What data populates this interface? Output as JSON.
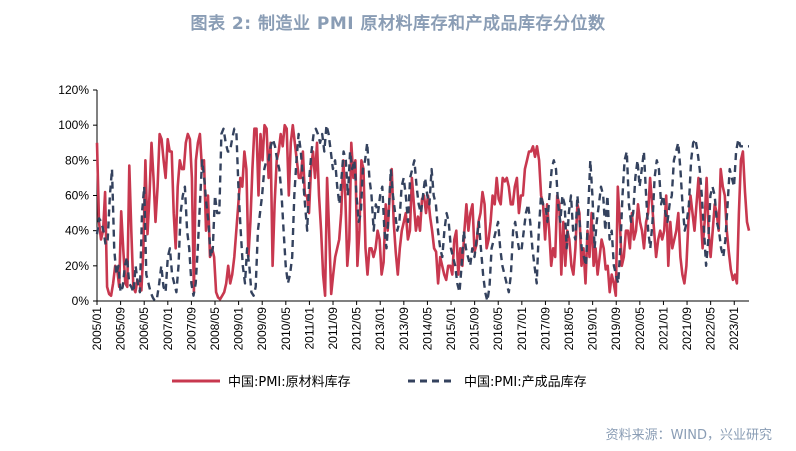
{
  "title": "图表 2:  制造业 PMI 原材料库存和产成品库存分位数",
  "source": "资料来源：WIND，兴业研究",
  "colors": {
    "series1": "#c8384f",
    "series2": "#34425e",
    "title": "#8a9db5"
  },
  "chart_data": {
    "type": "line",
    "title": "图表 2:  制造业 PMI 原材料库存和产成品库存分位数",
    "xlabel": "",
    "ylabel": "",
    "ylim": [
      0,
      120
    ],
    "yticks": [
      "0%",
      "20%",
      "40%",
      "60%",
      "80%",
      "100%",
      "120%"
    ],
    "xticks": [
      "2005/01",
      "2005/09",
      "2006/05",
      "2007/01",
      "2007/09",
      "2008/05",
      "2009/01",
      "2009/09",
      "2010/05",
      "2011/01",
      "2011/09",
      "2012/05",
      "2013/01",
      "2013/09",
      "2014/05",
      "2015/01",
      "2015/09",
      "2016/05",
      "2017/01",
      "2017/09",
      "2018/05",
      "2019/01",
      "2019/09",
      "2020/05",
      "2021/01",
      "2021/09",
      "2022/05",
      "2023/01"
    ],
    "x_start": "2005/01",
    "x_end": "2023/06",
    "legend_position": "bottom",
    "grid": false,
    "series": [
      {
        "name": "中国:PMI:原材料库存",
        "style": "solid",
        "values": [
          90,
          45,
          35,
          40,
          62,
          8,
          4,
          3,
          10,
          20,
          18,
          8,
          51,
          30,
          10,
          8,
          77,
          40,
          8,
          5,
          12,
          10,
          6,
          30,
          80,
          38,
          60,
          90,
          70,
          45,
          65,
          95,
          92,
          80,
          70,
          92,
          85,
          85,
          50,
          30,
          65,
          80,
          75,
          75,
          90,
          95,
          92,
          70,
          5,
          80,
          90,
          95,
          75,
          80,
          40,
          60,
          25,
          30,
          25,
          5,
          2,
          1,
          3,
          5,
          10,
          20,
          10,
          15,
          25,
          40,
          55,
          70,
          65,
          85,
          75,
          25,
          45,
          75,
          98,
          98,
          60,
          95,
          80,
          100,
          98,
          70,
          90,
          20,
          55,
          80,
          85,
          95,
          88,
          100,
          98,
          60,
          90,
          100,
          90,
          80,
          70,
          70,
          85,
          60,
          60,
          50,
          75,
          85,
          70,
          90,
          60,
          40,
          15,
          3,
          70,
          40,
          4,
          15,
          25,
          30,
          35,
          50,
          80,
          60,
          20,
          35,
          90,
          70,
          80,
          20,
          40,
          80,
          75,
          30,
          15,
          30,
          30,
          25,
          30,
          40,
          35,
          15,
          22,
          55,
          40,
          60,
          75,
          45,
          28,
          15,
          30,
          40,
          45,
          50,
          35,
          40,
          70,
          55,
          40,
          48,
          40,
          58,
          60,
          50,
          60,
          48,
          40,
          30,
          28,
          10,
          25,
          20,
          15,
          12,
          20,
          20,
          15,
          35,
          40,
          15,
          30,
          20,
          40,
          55,
          40,
          50,
          55,
          28,
          32,
          45,
          50,
          62,
          55,
          30,
          35,
          45,
          60,
          55,
          70,
          58,
          55,
          70,
          68,
          70,
          65,
          55,
          55,
          65,
          70,
          50,
          60,
          60,
          75,
          80,
          85,
          85,
          88,
          82,
          88,
          80,
          60,
          55,
          35,
          55,
          40,
          20,
          30,
          25,
          60,
          55,
          15,
          45,
          20,
          40,
          35,
          20,
          15,
          30,
          55,
          50,
          20,
          30,
          10,
          40,
          25,
          50,
          20,
          30,
          15,
          25,
          35,
          30,
          18,
          20,
          5,
          15,
          10,
          3,
          65,
          45,
          20,
          25,
          40,
          40,
          30,
          50,
          35,
          40,
          55,
          45,
          40,
          30,
          45,
          50,
          70,
          55,
          40,
          25,
          35,
          40,
          35,
          40,
          60,
          20,
          45,
          30,
          35,
          40,
          50,
          25,
          15,
          10,
          20,
          45,
          60,
          50,
          40,
          55,
          70,
          50,
          30,
          45,
          70,
          40,
          25,
          40,
          55,
          50,
          40,
          75,
          65,
          60,
          40,
          28,
          18,
          12,
          15,
          10,
          50,
          80,
          85,
          62,
          45,
          40
        ]
      },
      {
        "name": "中国:PMI:产成品库存",
        "style": "dashed",
        "values": [
          38,
          47,
          45,
          40,
          32,
          35,
          60,
          75,
          30,
          15,
          20,
          5,
          8,
          20,
          25,
          10,
          8,
          5,
          20,
          10,
          5,
          50,
          65,
          15,
          10,
          5,
          2,
          0,
          2,
          10,
          20,
          8,
          5,
          25,
          30,
          15,
          10,
          5,
          20,
          50,
          60,
          65,
          40,
          30,
          10,
          3,
          10,
          30,
          55,
          80,
          70,
          55,
          45,
          25,
          30,
          60,
          50,
          50,
          95,
          98,
          90,
          85,
          85,
          92,
          98,
          96,
          62,
          40,
          20,
          10,
          30,
          20,
          5,
          3,
          8,
          40,
          50,
          60,
          75,
          80,
          80,
          88,
          92,
          88,
          80,
          75,
          62,
          40,
          20,
          10,
          15,
          25,
          60,
          80,
          95,
          85,
          70,
          55,
          40,
          70,
          85,
          95,
          98,
          95,
          90,
          95,
          85,
          100,
          95,
          85,
          75,
          80,
          65,
          55,
          70,
          85,
          80,
          60,
          85,
          75,
          80,
          60,
          45,
          50,
          75,
          80,
          90,
          70,
          60,
          40,
          55,
          50,
          60,
          65,
          40,
          30,
          50,
          75,
          60,
          50,
          40,
          45,
          65,
          70,
          60,
          45,
          70,
          75,
          80,
          65,
          55,
          50,
          60,
          70,
          60,
          55,
          75,
          60,
          55,
          40,
          30,
          25,
          40,
          50,
          45,
          30,
          25,
          20,
          10,
          5,
          20,
          40,
          30,
          25,
          20,
          30,
          25,
          35,
          45,
          30,
          15,
          5,
          0,
          8,
          30,
          35,
          40,
          45,
          30,
          20,
          15,
          10,
          5,
          15,
          40,
          45,
          35,
          28,
          30,
          40,
          50,
          55,
          45,
          30,
          20,
          10,
          40,
          60,
          55,
          55,
          45,
          60,
          75,
          80,
          75,
          55,
          45,
          60,
          55,
          30,
          50,
          60,
          40,
          35,
          60,
          45,
          30,
          25,
          20,
          50,
          80,
          60,
          30,
          45,
          55,
          65,
          60,
          40,
          60,
          35,
          40,
          20,
          15,
          10,
          30,
          60,
          80,
          85,
          55,
          45,
          50,
          70,
          80,
          65,
          75,
          85,
          60,
          40,
          30,
          45,
          70,
          80,
          75,
          55,
          60,
          50,
          45,
          55,
          60,
          80,
          85,
          90,
          75,
          55,
          40,
          45,
          55,
          80,
          90,
          92,
          85,
          75,
          60,
          40,
          20,
          35,
          60,
          65,
          60,
          45,
          40,
          30,
          25,
          35,
          55,
          75,
          70,
          65,
          85,
          92,
          88,
          88,
          88,
          88,
          88
        ]
      }
    ]
  }
}
